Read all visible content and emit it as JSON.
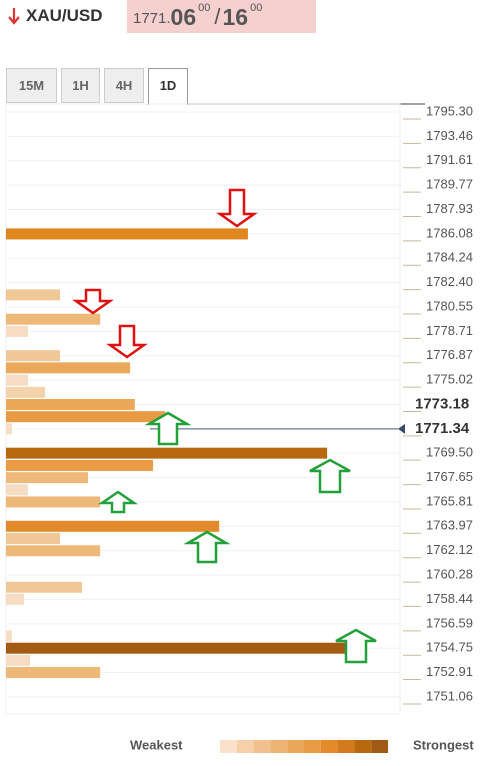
{
  "header": {
    "symbol": "XAU/USD",
    "price_main": "1771.",
    "bid_big": "06",
    "bid_small": "00",
    "separator": "/",
    "ask_big": "16",
    "ask_small": "00"
  },
  "tabs": [
    "15M",
    "1H",
    "4H",
    "1D"
  ],
  "active_tab": "1D",
  "chart_data": {
    "type": "bar",
    "orientation": "horizontal",
    "prices": [
      1786.08,
      1781.47,
      1779.63,
      1778.71,
      1776.87,
      1775.95,
      1775.02,
      1774.1,
      1773.18,
      1772.26,
      1771.34,
      1769.5,
      1768.57,
      1767.65,
      1766.73,
      1765.81,
      1763.97,
      1763.05,
      1762.12,
      1759.36,
      1758.44,
      1755.67,
      1754.75,
      1753.83,
      1752.91
    ],
    "values": [
      61.4,
      13.7,
      23.9,
      5.6,
      13.7,
      31.5,
      5.6,
      9.9,
      32.7,
      40.4,
      1.5,
      81.5,
      37.3,
      20.8,
      5.6,
      23.9,
      54.1,
      13.7,
      23.9,
      19.3,
      4.6,
      1.5,
      90.4,
      6.1,
      23.9
    ],
    "colors": [
      "#e0861e",
      "#f0c898",
      "#eeb878",
      "#f7dcc4",
      "#f0c898",
      "#eba85a",
      "#f7dcc4",
      "#f4d2ae",
      "#eba85a",
      "#e89b44",
      "#f7dcc4",
      "#b8690f",
      "#e89b44",
      "#eeb878",
      "#f7dcc4",
      "#eeb878",
      "#e38b2a",
      "#f0c898",
      "#eeb878",
      "#f0c898",
      "#f7dcc4",
      "#f7dcc4",
      "#a45c14",
      "#f7dcc4",
      "#eeb878"
    ],
    "xlim": [
      0,
      100
    ],
    "ylim": [
      1751.06,
      1795.3
    ],
    "yticks": [
      {
        "value": 1795.3,
        "label": "1795.30"
      },
      1793.46,
      1791.61,
      1789.77,
      1787.93,
      1786.08,
      1784.24,
      {
        "value": 1782.4,
        "label": "1782.40"
      },
      1780.55,
      1778.71,
      1776.87,
      1775.02,
      1773.18,
      1771.34,
      {
        "value": 1769.5,
        "label": "1769.50"
      },
      1767.65,
      1765.81,
      1763.97,
      1762.12,
      1760.28,
      1758.44,
      1756.59,
      1754.75,
      1752.91,
      1751.06
    ],
    "bold_ticks": [
      1773.18,
      1771.34
    ],
    "current_price": 1771.34,
    "grid": true,
    "legend": {
      "weak_label": "Weakest",
      "strong_label": "Strongest",
      "colors": [
        "#f9e1cb",
        "#f5d0a8",
        "#f1c08c",
        "#eeb474",
        "#eba85a",
        "#e89b44",
        "#e38b2a",
        "#d27a1c",
        "#b8690f",
        "#a05a14"
      ]
    }
  }
}
